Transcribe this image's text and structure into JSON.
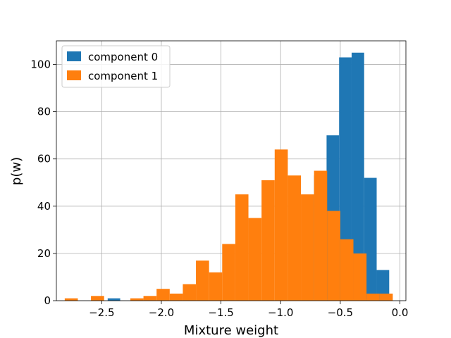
{
  "chart_data": {
    "type": "bar",
    "subtype": "overlaid-histogram",
    "xlabel": "Mixture weight",
    "ylabel": "p(w)",
    "xlim": [
      -2.88,
      0.05
    ],
    "ylim": [
      0,
      110
    ],
    "grid": true,
    "legend_position": "top-left",
    "x_ticks": [
      {
        "value": -2.5,
        "label": "−2.5"
      },
      {
        "value": -2.0,
        "label": "−2.0"
      },
      {
        "value": -1.5,
        "label": "−1.5"
      },
      {
        "value": -1.0,
        "label": "−1.0"
      },
      {
        "value": -0.5,
        "label": "−0.5"
      },
      {
        "value": 0.0,
        "label": "0.0"
      }
    ],
    "y_ticks": [
      {
        "value": 0,
        "label": "0"
      },
      {
        "value": 20,
        "label": "20"
      },
      {
        "value": 40,
        "label": "40"
      },
      {
        "value": 60,
        "label": "60"
      },
      {
        "value": 80,
        "label": "80"
      },
      {
        "value": 100,
        "label": "100"
      }
    ],
    "series": [
      {
        "name": "component 0",
        "color": "#1f77b4",
        "bins": [
          {
            "x0": -2.45,
            "x1": -2.345,
            "count": 1
          },
          {
            "x0": -0.72,
            "x1": -0.615,
            "count": 53
          },
          {
            "x0": -0.615,
            "x1": -0.51,
            "count": 70
          },
          {
            "x0": -0.51,
            "x1": -0.405,
            "count": 103
          },
          {
            "x0": -0.405,
            "x1": -0.3,
            "count": 105
          },
          {
            "x0": -0.3,
            "x1": -0.195,
            "count": 52
          },
          {
            "x0": -0.195,
            "x1": -0.09,
            "count": 13
          }
        ]
      },
      {
        "name": "component 1",
        "color": "#ff7f0e",
        "bins": [
          {
            "x0": -2.81,
            "x1": -2.7,
            "count": 1
          },
          {
            "x0": -2.59,
            "x1": -2.48,
            "count": 2
          },
          {
            "x0": -2.26,
            "x1": -2.15,
            "count": 1
          },
          {
            "x0": -2.15,
            "x1": -2.04,
            "count": 2
          },
          {
            "x0": -2.04,
            "x1": -1.93,
            "count": 5
          },
          {
            "x0": -1.93,
            "x1": -1.82,
            "count": 3
          },
          {
            "x0": -1.82,
            "x1": -1.71,
            "count": 7
          },
          {
            "x0": -1.71,
            "x1": -1.6,
            "count": 17
          },
          {
            "x0": -1.6,
            "x1": -1.49,
            "count": 12
          },
          {
            "x0": -1.49,
            "x1": -1.38,
            "count": 24
          },
          {
            "x0": -1.38,
            "x1": -1.27,
            "count": 45
          },
          {
            "x0": -1.27,
            "x1": -1.16,
            "count": 35
          },
          {
            "x0": -1.16,
            "x1": -1.05,
            "count": 51
          },
          {
            "x0": -1.05,
            "x1": -0.94,
            "count": 64
          },
          {
            "x0": -0.94,
            "x1": -0.83,
            "count": 53
          },
          {
            "x0": -0.83,
            "x1": -0.72,
            "count": 45
          },
          {
            "x0": -0.72,
            "x1": -0.61,
            "count": 55
          },
          {
            "x0": -0.61,
            "x1": -0.5,
            "count": 38
          },
          {
            "x0": -0.5,
            "x1": -0.39,
            "count": 26
          },
          {
            "x0": -0.39,
            "x1": -0.28,
            "count": 20
          },
          {
            "x0": -0.28,
            "x1": -0.17,
            "count": 3
          },
          {
            "x0": -0.17,
            "x1": -0.06,
            "count": 3
          }
        ]
      }
    ]
  }
}
